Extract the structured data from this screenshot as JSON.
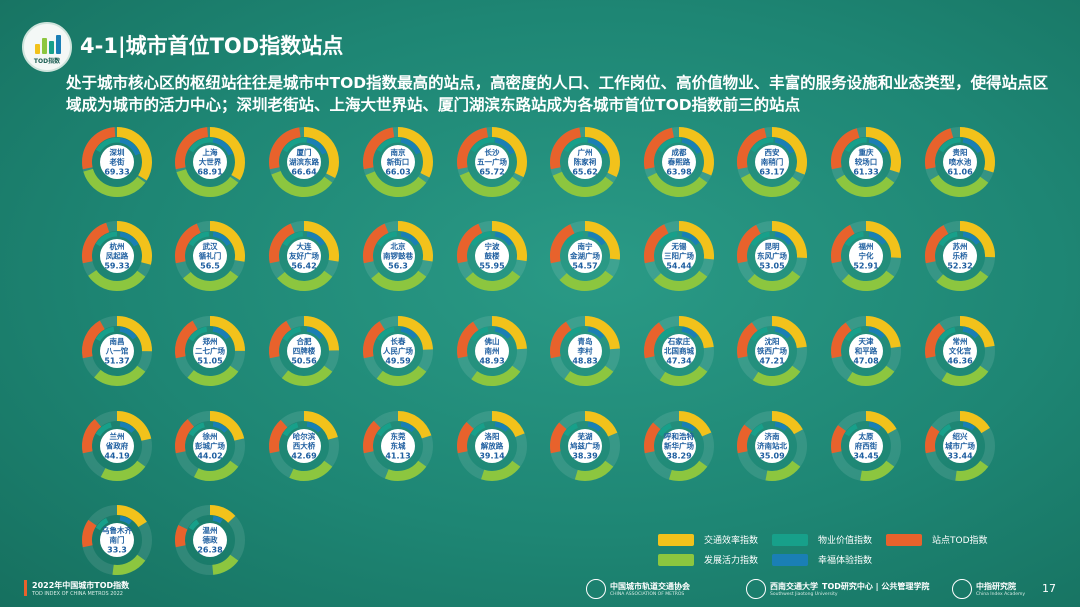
{
  "page": {
    "title": "4-1|城市首位TOD指数站点",
    "subtitle": "处于城市核心区的枢纽站往往是城市中TOD指数最高的站点，高密度的人口、工作岗位、高价值物业、丰富的服务设施和业态类型，使得站点区域成为城市的活力中心；深圳老街站、上海大世界站、厦门湖滨东路站成为各城市首位TOD指数前三的站点",
    "logo_text": "TOD指数",
    "page_number": "17"
  },
  "footer": {
    "title": "2022年中国城市TOD指数",
    "subtitle": "TOD INDEX OF CHINA METROS 2022",
    "orgs": [
      {
        "name": "中国城市轨道交通协会",
        "sub": "CHINA ASSOCIATION OF METROS"
      },
      {
        "name": "西南交通大学",
        "sub": "Southwest Jiaotong University"
      },
      {
        "name": "TOD研究中心 | 公共管理学院",
        "sub": ""
      },
      {
        "name": "中指研究院",
        "sub": "China Index Academy"
      }
    ]
  },
  "colors": {
    "traffic": "#f2c21b",
    "property": "#17a08a",
    "station_tod": "#e8622c",
    "development": "#8cc63f",
    "happiness": "#1a7fb5"
  },
  "chart_data": {
    "type": "donut",
    "legend": [
      {
        "key": "traffic",
        "label": "交通效率指数"
      },
      {
        "key": "property",
        "label": "物业价值指数"
      },
      {
        "key": "station_tod",
        "label": "站点TOD指数"
      },
      {
        "key": "development",
        "label": "发展活力指数"
      },
      {
        "key": "happiness",
        "label": "幸福体验指数"
      }
    ],
    "stations": [
      {
        "city": "深圳",
        "station": "老街",
        "value": "69.33"
      },
      {
        "city": "上海",
        "station": "大世界",
        "value": "68.91"
      },
      {
        "city": "厦门",
        "station": "湖滨东路",
        "value": "66.64"
      },
      {
        "city": "南京",
        "station": "新街口",
        "value": "66.03"
      },
      {
        "city": "长沙",
        "station": "五一广场",
        "value": "65.72"
      },
      {
        "city": "广州",
        "station": "陈家祠",
        "value": "65.62"
      },
      {
        "city": "成都",
        "station": "春熙路",
        "value": "63.98"
      },
      {
        "city": "西安",
        "station": "南稍门",
        "value": "63.17"
      },
      {
        "city": "重庆",
        "station": "较场口",
        "value": "61.33"
      },
      {
        "city": "贵阳",
        "station": "喷水池",
        "value": "61.06"
      },
      {
        "city": "杭州",
        "station": "凤起路",
        "value": "59.33"
      },
      {
        "city": "武汉",
        "station": "循礼门",
        "value": "56.5"
      },
      {
        "city": "大连",
        "station": "友好广场",
        "value": "56.42"
      },
      {
        "city": "北京",
        "station": "南锣鼓巷",
        "value": "56.3"
      },
      {
        "city": "宁波",
        "station": "鼓楼",
        "value": "55.95"
      },
      {
        "city": "南宁",
        "station": "金湖广场",
        "value": "54.57"
      },
      {
        "city": "无锡",
        "station": "三阳广场",
        "value": "54.44"
      },
      {
        "city": "昆明",
        "station": "东风广场",
        "value": "53.05"
      },
      {
        "city": "福州",
        "station": "宁化",
        "value": "52.91"
      },
      {
        "city": "苏州",
        "station": "乐桥",
        "value": "52.32"
      },
      {
        "city": "南昌",
        "station": "八一馆",
        "value": "51.37"
      },
      {
        "city": "郑州",
        "station": "二七广场",
        "value": "51.05"
      },
      {
        "city": "合肥",
        "station": "四牌楼",
        "value": "50.56"
      },
      {
        "city": "长春",
        "station": "人民广场",
        "value": "49.59"
      },
      {
        "city": "佛山",
        "station": "南州",
        "value": "48.93"
      },
      {
        "city": "青岛",
        "station": "李村",
        "value": "48.83"
      },
      {
        "city": "石家庄",
        "station": "北国商城",
        "value": "47.34"
      },
      {
        "city": "沈阳",
        "station": "铁西广场",
        "value": "47.21"
      },
      {
        "city": "天津",
        "station": "和平路",
        "value": "47.08"
      },
      {
        "city": "常州",
        "station": "文化宫",
        "value": "46.36"
      },
      {
        "city": "兰州",
        "station": "省政府",
        "value": "44.19"
      },
      {
        "city": "徐州",
        "station": "彭城广场",
        "value": "44.02"
      },
      {
        "city": "哈尔滨",
        "station": "西大桥",
        "value": "42.69"
      },
      {
        "city": "东莞",
        "station": "东城",
        "value": "41.13"
      },
      {
        "city": "洛阳",
        "station": "解放路",
        "value": "39.14"
      },
      {
        "city": "芜湖",
        "station": "鸠兹广场",
        "value": "38.39"
      },
      {
        "city": "呼和浩特",
        "station": "新华广场",
        "value": "38.29"
      },
      {
        "city": "济南",
        "station": "济南站北",
        "value": "35.09"
      },
      {
        "city": "太原",
        "station": "府西街",
        "value": "34.45"
      },
      {
        "city": "绍兴",
        "station": "城市广场",
        "value": "33.44"
      },
      {
        "city": "乌鲁木齐",
        "station": "南门",
        "value": "33.3"
      },
      {
        "city": "温州",
        "station": "德政",
        "value": "26.38"
      }
    ]
  }
}
